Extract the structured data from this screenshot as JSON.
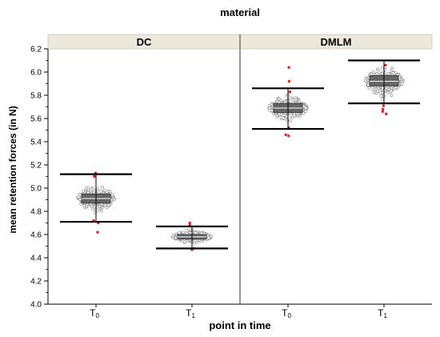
{
  "chart_data": {
    "type": "box-plot",
    "facet_title": "material",
    "facets": [
      "DC",
      "DMLM"
    ],
    "xlabel": "point in time",
    "ylabel": "mean retention forces (in N)",
    "ylim": [
      4.0,
      6.2
    ],
    "yticks": [
      "4.0",
      "4.2",
      "4.4",
      "4.6",
      "4.8",
      "5.0",
      "5.2",
      "5.4",
      "5.6",
      "5.8",
      "6.0",
      "6.2"
    ],
    "xtick_labels": [
      {
        "main": "T",
        "sub": "0"
      },
      {
        "main": "T",
        "sub": "1"
      },
      {
        "main": "T",
        "sub": "0"
      },
      {
        "main": "T",
        "sub": "1"
      }
    ],
    "groups": [
      {
        "facet": "DC",
        "time": "T0",
        "q1": 4.87,
        "median": 4.91,
        "q3": 4.95,
        "whisker_low": 4.71,
        "whisker_high": 5.12,
        "spread_low": 4.75,
        "spread_high": 5.08,
        "outliers": [
          4.62,
          4.7,
          4.72,
          5.1,
          5.13
        ]
      },
      {
        "facet": "DC",
        "time": "T1",
        "q1": 4.56,
        "median": 4.58,
        "q3": 4.6,
        "whisker_low": 4.48,
        "whisker_high": 4.67,
        "spread_low": 4.5,
        "spread_high": 4.66,
        "outliers": [
          4.47,
          4.48,
          4.68,
          4.7
        ]
      },
      {
        "facet": "DMLM",
        "time": "T0",
        "q1": 5.65,
        "median": 5.69,
        "q3": 5.73,
        "whisker_low": 5.51,
        "whisker_high": 5.86,
        "spread_low": 5.53,
        "spread_high": 5.84,
        "outliers": [
          5.45,
          5.46,
          5.52,
          5.83,
          5.92,
          6.04
        ]
      },
      {
        "facet": "DMLM",
        "time": "T1",
        "q1": 5.88,
        "median": 5.92,
        "q3": 5.97,
        "whisker_low": 5.73,
        "whisker_high": 6.1,
        "spread_low": 5.76,
        "spread_high": 6.08,
        "outliers": [
          5.64,
          5.66,
          5.68,
          5.71,
          6.06
        ]
      }
    ],
    "colors": {
      "box": "#555555",
      "points": "#888888",
      "whisker": "#000000",
      "outlier": "#e02020",
      "strip": "#ece8dc"
    },
    "grid": false,
    "legend": "none"
  }
}
